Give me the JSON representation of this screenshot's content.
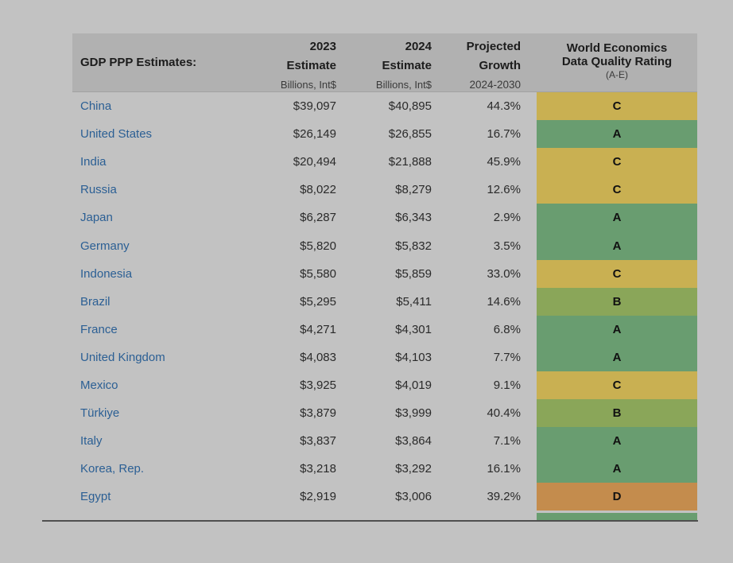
{
  "chart_data": {
    "type": "table",
    "header": {
      "country": "GDP PPP Estimates:",
      "est2023": [
        "2023",
        "Estimate",
        "Billions, Int$"
      ],
      "est2024": [
        "2024",
        "Estimate",
        "Billions, Int$"
      ],
      "growth": [
        "Projected",
        "Growth",
        "2024-2030"
      ],
      "rating": [
        "World Economics",
        "Data Quality Rating",
        "(A-E)"
      ]
    },
    "columns": [
      "GDP PPP Estimates:",
      "2023 Estimate Billions, Int$",
      "2024 Estimate Billions, Int$",
      "Projected Growth 2024-2030",
      "World Economics Data Quality Rating (A-E)"
    ],
    "rows": [
      {
        "country": "China",
        "est2023": "$39,097",
        "est2024": "$40,895",
        "growth": "44.3%",
        "rating": "C"
      },
      {
        "country": "United States",
        "est2023": "$26,149",
        "est2024": "$26,855",
        "growth": "16.7%",
        "rating": "A"
      },
      {
        "country": "India",
        "est2023": "$20,494",
        "est2024": "$21,888",
        "growth": "45.9%",
        "rating": "C"
      },
      {
        "country": "Russia",
        "est2023": "$8,022",
        "est2024": "$8,279",
        "growth": "12.6%",
        "rating": "C"
      },
      {
        "country": "Japan",
        "est2023": "$6,287",
        "est2024": "$6,343",
        "growth": "2.9%",
        "rating": "A"
      },
      {
        "country": "Germany",
        "est2023": "$5,820",
        "est2024": "$5,832",
        "growth": "3.5%",
        "rating": "A"
      },
      {
        "country": "Indonesia",
        "est2023": "$5,580",
        "est2024": "$5,859",
        "growth": "33.0%",
        "rating": "C"
      },
      {
        "country": "Brazil",
        "est2023": "$5,295",
        "est2024": "$5,411",
        "growth": "14.6%",
        "rating": "B"
      },
      {
        "country": "France",
        "est2023": "$4,271",
        "est2024": "$4,301",
        "growth": "6.8%",
        "rating": "A"
      },
      {
        "country": "United Kingdom",
        "est2023": "$4,083",
        "est2024": "$4,103",
        "growth": "7.7%",
        "rating": "A"
      },
      {
        "country": "Mexico",
        "est2023": "$3,925",
        "est2024": "$4,019",
        "growth": "9.1%",
        "rating": "C"
      },
      {
        "country": "Türkiye",
        "est2023": "$3,879",
        "est2024": "$3,999",
        "growth": "40.4%",
        "rating": "B"
      },
      {
        "country": "Italy",
        "est2023": "$3,837",
        "est2024": "$3,864",
        "growth": "7.1%",
        "rating": "A"
      },
      {
        "country": "Korea, Rep.",
        "est2023": "$3,218",
        "est2024": "$3,292",
        "growth": "16.1%",
        "rating": "A"
      },
      {
        "country": "Egypt",
        "est2023": "$2,919",
        "est2024": "$3,006",
        "growth": "39.2%",
        "rating": "D"
      }
    ]
  },
  "colors": {
    "page_background": "#c2c2c2",
    "header_background": "#b1b1b1",
    "country_text": "#2b5f94",
    "rating_A": "#699d70",
    "rating_B": "#8aa659",
    "rating_C": "#c9b052",
    "rating_D": "#c48c4d"
  }
}
